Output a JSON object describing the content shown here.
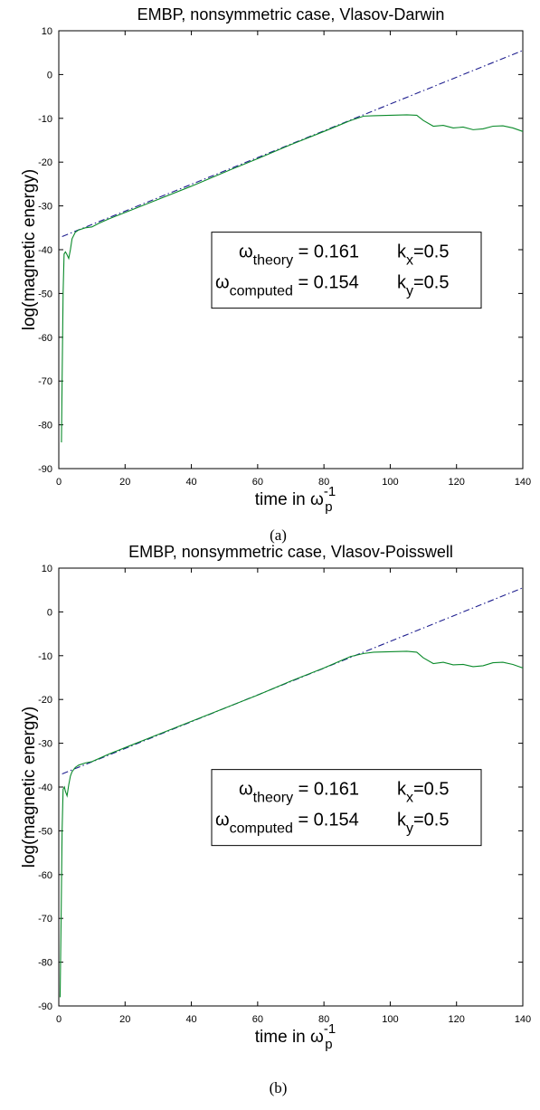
{
  "chart_data": [
    {
      "type": "line",
      "title": "EMBP,  nonsymmetric case, Vlasov-Darwin",
      "xlabel": {
        "main": "time in ω",
        "sub": "p",
        "sup": "-1"
      },
      "ylabel": "log(magnetic energy)",
      "xlim": [
        0,
        140
      ],
      "ylim": [
        -90,
        10
      ],
      "xticks": [
        0,
        20,
        40,
        60,
        80,
        100,
        120,
        140
      ],
      "yticks": [
        10,
        0,
        -10,
        -20,
        -30,
        -40,
        -50,
        -60,
        -70,
        -80,
        -90
      ],
      "grid": false,
      "caption": "(a)",
      "legend": {
        "placement": "center-right",
        "rows": [
          {
            "sym": "ω",
            "sub": "theory",
            "eq": " = 0.161",
            "k": "k",
            "ksub": "x",
            "kval": "=0.5"
          },
          {
            "sym": "ω",
            "sub": "computed",
            "eq": " = 0.154",
            "k": "k",
            "ksub": "y",
            "kval": "=0.5"
          }
        ]
      },
      "series": [
        {
          "style": "dashdot",
          "color": "#1f1f8f",
          "x": [
            1,
            140
          ],
          "y": [
            -37,
            5.5
          ]
        },
        {
          "style": "solid",
          "color": "#0a8a2a",
          "x": [
            0.8,
            1,
            1.3,
            1.6,
            2,
            2.4,
            3,
            3.5,
            4,
            5,
            6,
            8,
            10,
            12,
            15,
            20,
            30,
            40,
            50,
            60,
            70,
            80,
            88,
            92,
            95,
            100,
            105,
            108,
            110,
            113,
            116,
            119,
            122,
            125,
            128,
            131,
            134,
            137,
            140
          ],
          "y": [
            -84,
            -70,
            -50,
            -41,
            -40.5,
            -41,
            -42,
            -40,
            -37.5,
            -36,
            -35.5,
            -35,
            -34.8,
            -34,
            -33,
            -31.5,
            -28.5,
            -25.5,
            -22.3,
            -19.2,
            -16,
            -13,
            -10.5,
            -9.5,
            -9.4,
            -9.3,
            -9.2,
            -9.3,
            -10.5,
            -11.8,
            -11.6,
            -12.2,
            -12,
            -12.6,
            -12.4,
            -11.8,
            -11.7,
            -12.2,
            -13
          ]
        }
      ]
    },
    {
      "type": "line",
      "title": "EMBP,  nonsymmetric case, Vlasov-Poisswell",
      "xlabel": {
        "main": "time in ω",
        "sub": "p",
        "sup": "-1"
      },
      "ylabel": "log(magnetic energy)",
      "xlim": [
        0,
        140
      ],
      "ylim": [
        -90,
        10
      ],
      "xticks": [
        0,
        20,
        40,
        60,
        80,
        100,
        120,
        140
      ],
      "yticks": [
        10,
        0,
        -10,
        -20,
        -30,
        -40,
        -50,
        -60,
        -70,
        -80,
        -90
      ],
      "grid": false,
      "caption": "(b)",
      "legend": {
        "placement": "center-right",
        "rows": [
          {
            "sym": "ω",
            "sub": "theory",
            "eq": " = 0.161",
            "k": "k",
            "ksub": "x",
            "kval": "=0.5"
          },
          {
            "sym": "ω",
            "sub": "computed",
            "eq": " = 0.154",
            "k": "k",
            "ksub": "y",
            "kval": "=0.5"
          }
        ]
      },
      "series": [
        {
          "style": "dashdot",
          "color": "#1f1f8f",
          "x": [
            1,
            140
          ],
          "y": [
            -37,
            5.5
          ]
        },
        {
          "style": "solid",
          "color": "#0a8a2a",
          "x": [
            0.4,
            0.7,
            1,
            1.3,
            1.7,
            2,
            2.5,
            3,
            3.5,
            4,
            5,
            6,
            8,
            10,
            15,
            20,
            30,
            40,
            50,
            60,
            70,
            80,
            88,
            92,
            95,
            100,
            105,
            108,
            110,
            113,
            116,
            119,
            122,
            125,
            128,
            131,
            134,
            137,
            140
          ],
          "y": [
            -88,
            -70,
            -50,
            -40.5,
            -40,
            -41,
            -42,
            -39.5,
            -37.5,
            -36.5,
            -35.5,
            -35,
            -34.5,
            -34.2,
            -32.5,
            -31,
            -28,
            -25,
            -22,
            -19,
            -15.8,
            -12.8,
            -10.2,
            -9.5,
            -9.2,
            -9.1,
            -9,
            -9.2,
            -10.5,
            -11.8,
            -11.5,
            -12.1,
            -12,
            -12.5,
            -12.3,
            -11.6,
            -11.5,
            -12,
            -12.8
          ]
        }
      ]
    }
  ]
}
